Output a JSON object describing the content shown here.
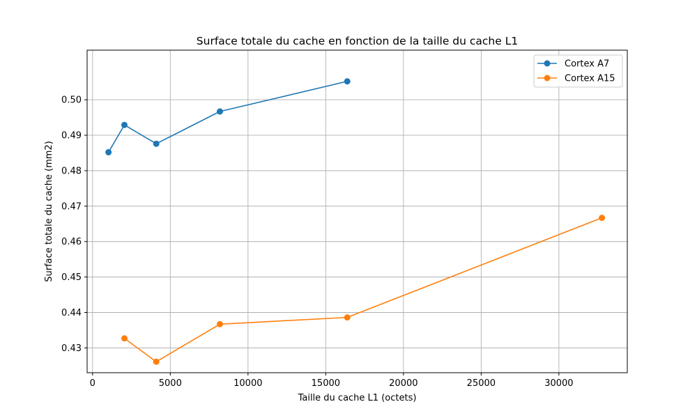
{
  "chart_data": {
    "type": "line",
    "title": "Surface totale du cache en fonction de la taille du cache L1",
    "xlabel": "Taille du cache L1 (octets)",
    "ylabel": "Surface totale du cache (mm2)",
    "xlim": [
      -350,
      34400
    ],
    "ylim": [
      0.423,
      0.514
    ],
    "xticks": [
      0,
      5000,
      10000,
      15000,
      20000,
      25000,
      30000
    ],
    "yticks": [
      0.43,
      0.44,
      0.45,
      0.46,
      0.47,
      0.48,
      0.49,
      0.5
    ],
    "xtick_labels": [
      "0",
      "5000",
      "10000",
      "15000",
      "20000",
      "25000",
      "30000"
    ],
    "ytick_labels": [
      "0.43",
      "0.44",
      "0.45",
      "0.46",
      "0.47",
      "0.48",
      "0.49",
      "0.50"
    ],
    "grid": true,
    "legend_position": "top-right",
    "series": [
      {
        "name": "Cortex A7",
        "color": "#1f77b4",
        "marker": "circle",
        "x": [
          1024,
          2048,
          4096,
          8192,
          16384
        ],
        "y": [
          0.4852,
          0.4929,
          0.4876,
          0.4967,
          0.5052
        ]
      },
      {
        "name": "Cortex A15",
        "color": "#ff7f0e",
        "marker": "circle",
        "x": [
          2048,
          4096,
          8192,
          16384,
          32768
        ],
        "y": [
          0.4327,
          0.4261,
          0.4367,
          0.4386,
          0.4667
        ]
      }
    ]
  }
}
